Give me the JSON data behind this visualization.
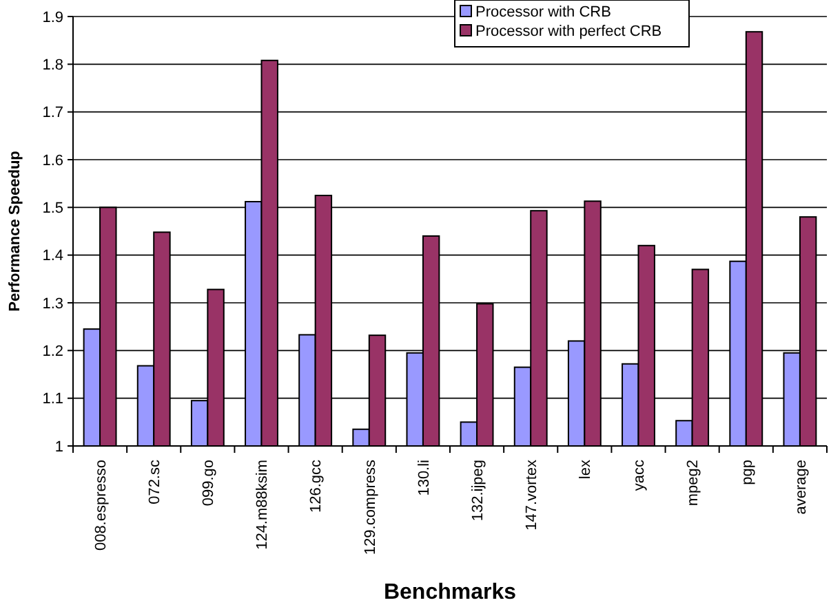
{
  "chart_data": {
    "type": "bar",
    "xlabel": "Benchmarks",
    "ylabel": "Performance Speedup",
    "categories": [
      "008.espresso",
      "072.sc",
      "099.go",
      "124.m88ksim",
      "126.gcc",
      "129.compress",
      "130.li",
      "132.ijpeg",
      "147.vortex",
      "lex",
      "yacc",
      "mpeg2",
      "pgp",
      "average"
    ],
    "series": [
      {
        "name": "Processor with CRB",
        "color": "#9999ff",
        "values": [
          1.245,
          1.168,
          1.095,
          1.512,
          1.233,
          1.035,
          1.195,
          1.05,
          1.165,
          1.22,
          1.172,
          1.053,
          1.387,
          1.195
        ]
      },
      {
        "name": "Processor with perfect CRB",
        "color": "#993366",
        "values": [
          1.5,
          1.448,
          1.328,
          1.808,
          1.525,
          1.232,
          1.44,
          1.298,
          1.493,
          1.513,
          1.42,
          1.37,
          1.868,
          1.48
        ]
      }
    ],
    "ylim": [
      1,
      1.9
    ],
    "yticks": [
      1,
      1.1,
      1.2,
      1.3,
      1.4,
      1.5,
      1.6,
      1.7,
      1.8,
      1.9
    ],
    "grid": "y",
    "legend": "top right"
  }
}
